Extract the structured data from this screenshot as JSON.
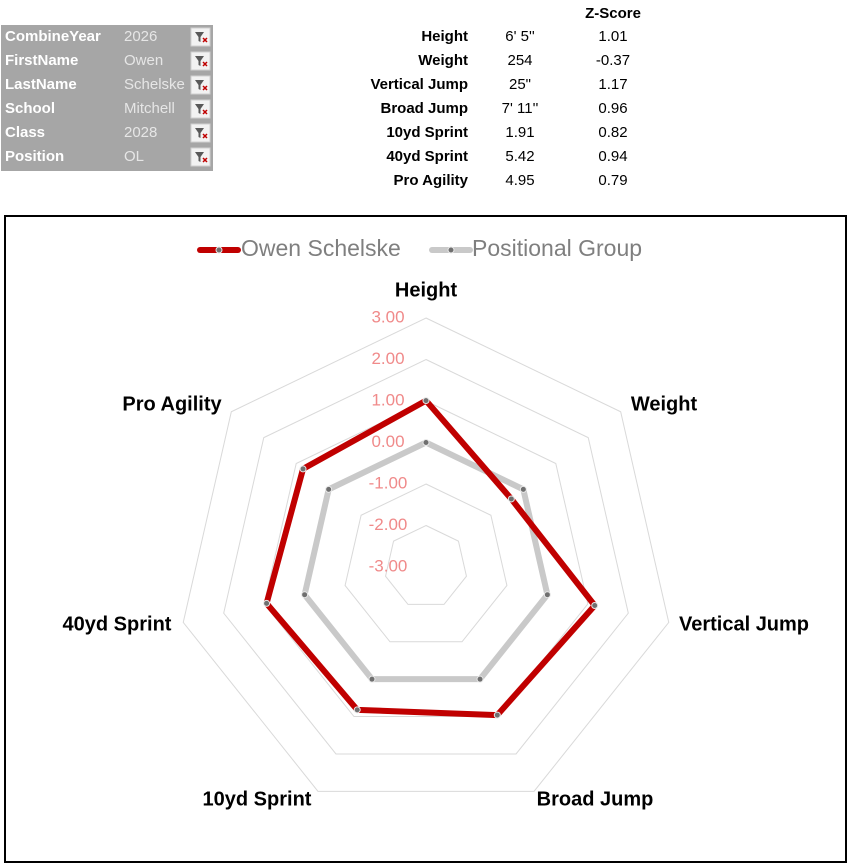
{
  "slicers": [
    {
      "label": "CombineYear",
      "value": "2026"
    },
    {
      "label": "FirstName",
      "value": "Owen"
    },
    {
      "label": "LastName",
      "value": "Schelske"
    },
    {
      "label": "School",
      "value": "Mitchell"
    },
    {
      "label": "Class",
      "value": "2028"
    },
    {
      "label": "Position",
      "value": "OL"
    }
  ],
  "table": {
    "header": "Z-Score",
    "rows": [
      [
        "Height",
        "6' 5''",
        1.01
      ],
      [
        "Weight",
        "254",
        -0.37
      ],
      [
        "Vertical Jump",
        "25\"",
        1.17
      ],
      [
        "Broad Jump",
        "7' 11''",
        0.96
      ],
      [
        "10yd Sprint",
        "1.91",
        0.82
      ],
      [
        "40yd Sprint",
        "5.42",
        0.94
      ],
      [
        "Pro Agility",
        "4.95",
        0.79
      ]
    ]
  },
  "chart_data": {
    "type": "radar",
    "categories": [
      "Height",
      "Weight",
      "Vertical Jump",
      "Broad Jump",
      "10yd Sprint",
      "40yd Sprint",
      "Pro Agility"
    ],
    "series": [
      {
        "name": "Owen Schelske",
        "color": "#c00000",
        "values": [
          1.01,
          -0.37,
          1.17,
          0.96,
          0.82,
          0.94,
          0.79
        ]
      },
      {
        "name": "Positional Group",
        "color": "#c9c9c9",
        "values": [
          0,
          0,
          0,
          0,
          0,
          0,
          0
        ]
      }
    ],
    "ylim": [
      -3,
      3
    ],
    "yticks": [
      {
        "value": -3,
        "label": "-3.00"
      },
      {
        "value": -2,
        "label": "-2.00"
      },
      {
        "value": -1,
        "label": "-1.00"
      },
      {
        "value": 0,
        "label": "0.00"
      },
      {
        "value": 1,
        "label": "1.00"
      },
      {
        "value": 2,
        "label": "2.00"
      },
      {
        "value": 3,
        "label": "3.00"
      }
    ],
    "grid": true,
    "legend": "top"
  }
}
